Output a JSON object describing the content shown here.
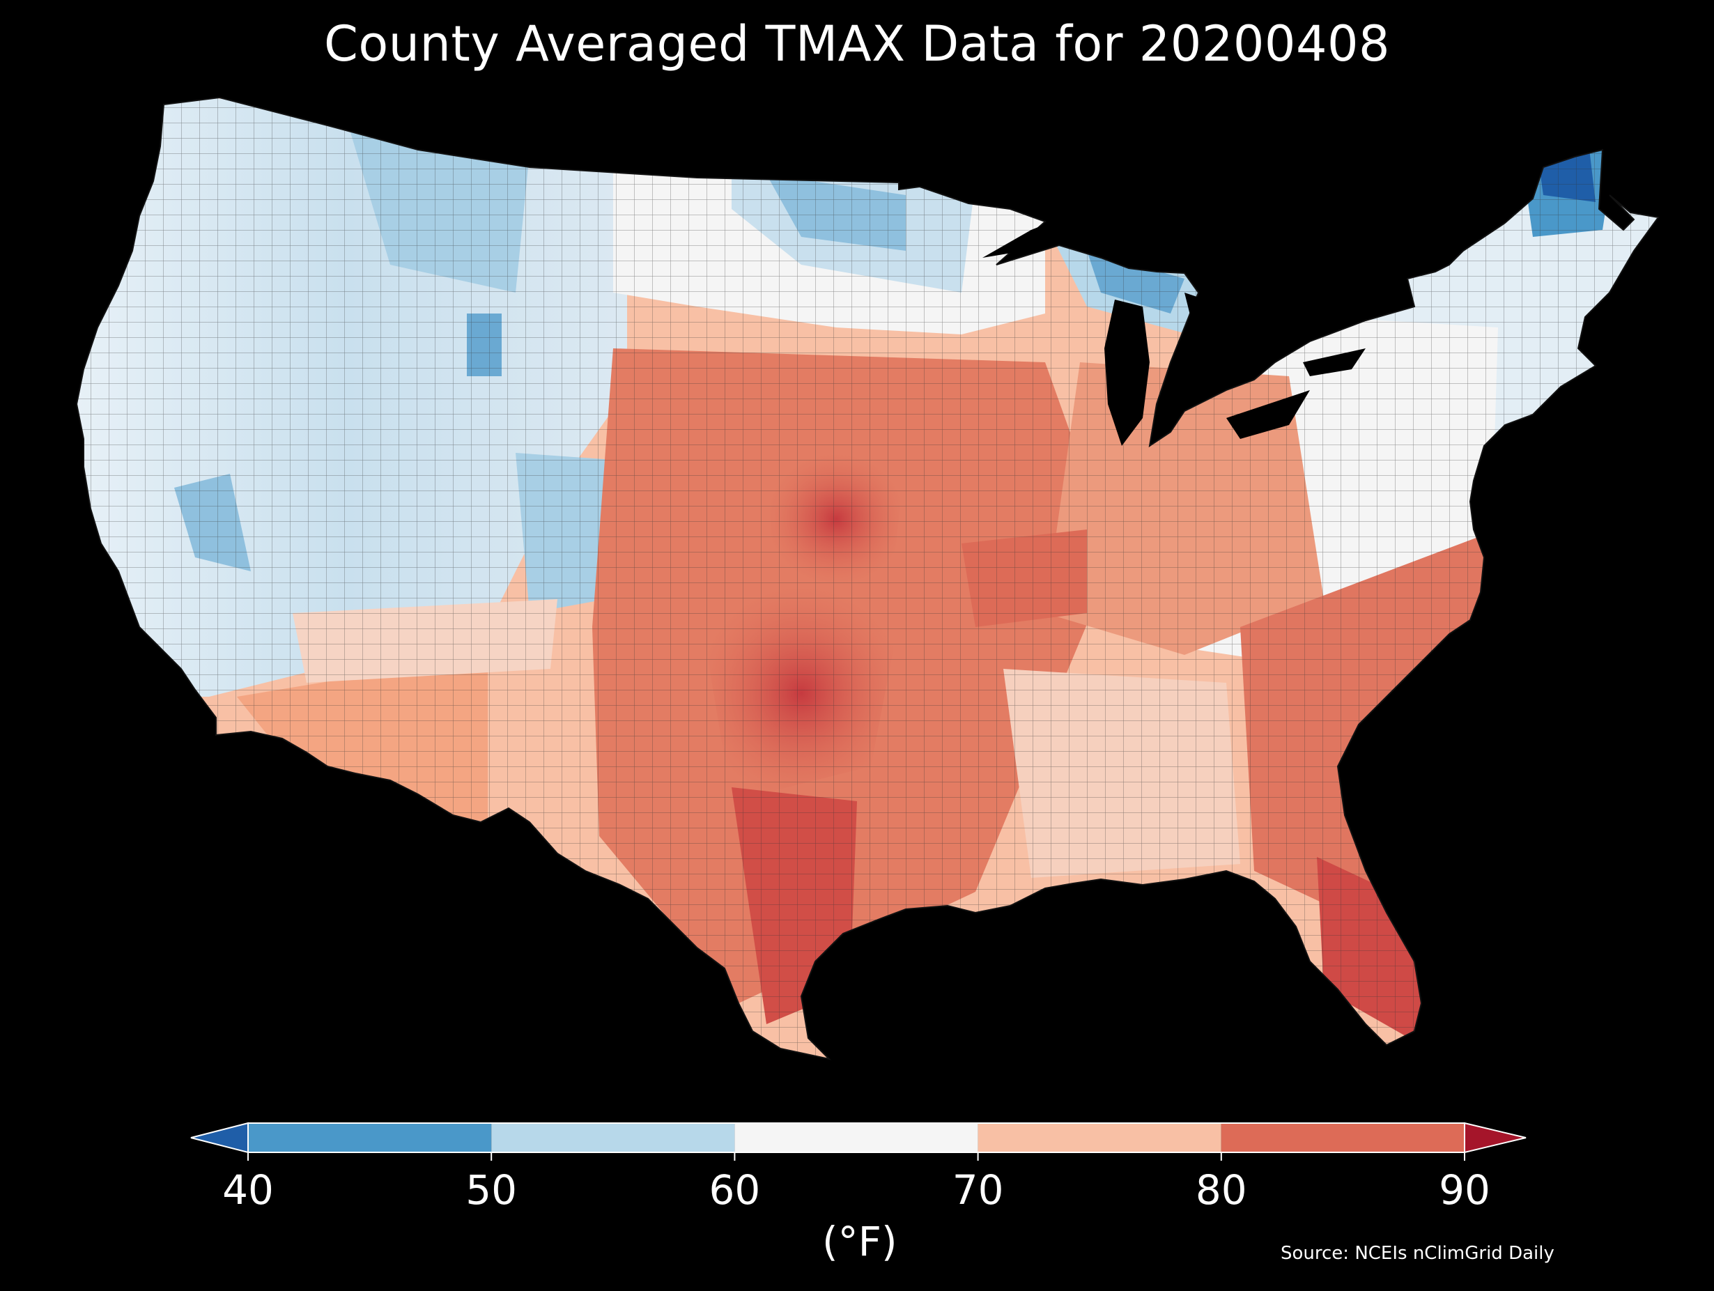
{
  "title": "County Averaged TMAX Data for 20200408",
  "source": "Source: NCEIs nClimGrid Daily",
  "colorbar": {
    "unit_label": "(°F)",
    "ticks": [
      "40",
      "50",
      "60",
      "70",
      "80",
      "90"
    ],
    "bins": [
      {
        "from": 40,
        "to": 50,
        "color": "#4a98c9"
      },
      {
        "from": 50,
        "to": 60,
        "color": "#b7d8ea"
      },
      {
        "from": 60,
        "to": 70,
        "color": "#f5f5f5"
      },
      {
        "from": 70,
        "to": 80,
        "color": "#f8c0a5"
      },
      {
        "from": 80,
        "to": 90,
        "color": "#dd6b57"
      }
    ],
    "under_color": "#1f5ea8",
    "over_color": "#a5152a",
    "extend": "both"
  },
  "map": {
    "region": "Contiguous United States, county level",
    "background": "#000000",
    "county_border_color": "#222222",
    "dominant_values": [
      {
        "area": "Pacific Northwest / Northern Rockies",
        "range_f": "50-60"
      },
      {
        "area": "Northern Maine",
        "range_f": "below 40"
      },
      {
        "area": "Upper Michigan / northern Minnesota",
        "range_f": "40-50"
      },
      {
        "area": "Desert Southwest",
        "range_f": "70-80"
      },
      {
        "area": "Southern Plains / Texas",
        "range_f": "80-90"
      },
      {
        "area": "Southeast / Florida",
        "range_f": "80-90"
      },
      {
        "area": "Mid-Atlantic / Northeast",
        "range_f": "60-70"
      }
    ]
  }
}
